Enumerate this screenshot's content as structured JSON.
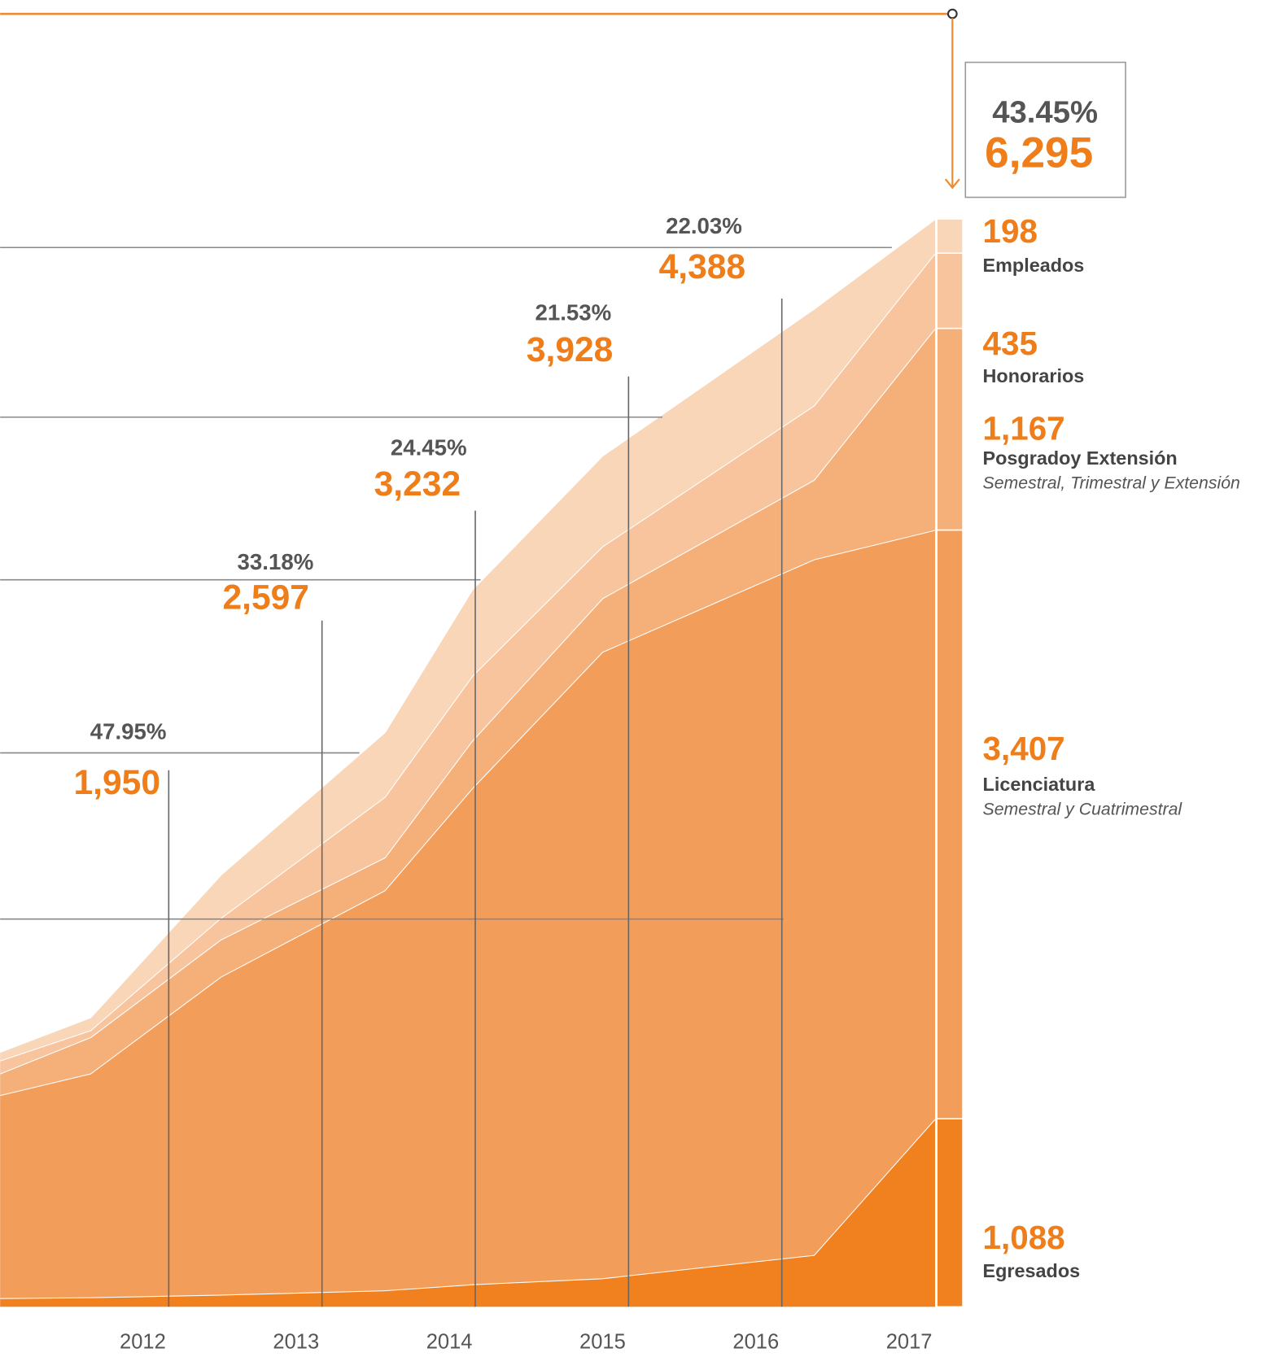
{
  "chart_data": {
    "type": "stacked_area",
    "x": [
      2010.9,
      2011.49,
      2012.34,
      2013.41,
      2013.98,
      2014.83,
      2016.21,
      2017
    ],
    "xlim": [
      2010.9,
      2017
    ],
    "xticks": [
      2012,
      2013,
      2014,
      2015,
      2016,
      2017
    ],
    "ylim": [
      0,
      6300
    ],
    "series": [
      {
        "name": "Egresados",
        "color": "#f0811e",
        "values": [
          50,
          55,
          70,
          95,
          130,
          165,
          300,
          1088
        ],
        "value_labels": [
          null,
          null,
          null,
          null,
          null,
          null,
          null,
          "1,088"
        ]
      },
      {
        "name": "Licenciatura",
        "subtitle": "Semestral y Cuatrimestral",
        "color": "#f39d5a",
        "values": [
          1175,
          1295,
          1840,
          2315,
          2870,
          3625,
          4025,
          3407
        ],
        "value_labels": [
          null,
          null,
          null,
          null,
          null,
          null,
          null,
          "3,407"
        ]
      },
      {
        "name": "Posgradoy Extensión",
        "subtitle": "Semestral, Trimestral y Extensión",
        "color": "#f5b07a",
        "values": [
          125,
          210,
          215,
          190,
          275,
          310,
          460,
          1167
        ],
        "value_labels": [
          null,
          null,
          null,
          null,
          null,
          null,
          null,
          "1,167"
        ]
      },
      {
        "name": "Honorarios",
        "color": "#f8c49e",
        "values": [
          75,
          40,
          125,
          350,
          375,
          300,
          430,
          435
        ]
      },
      {
        "name": "Empleados",
        "color": "#fad6b9",
        "values": [
          50,
          75,
          250,
          375,
          500,
          525,
          560,
          198
        ]
      }
    ],
    "annotations": [
      {
        "x": 2012,
        "label": "47.95%",
        "total": 1950,
        "total_label": "1,950"
      },
      {
        "x": 2013,
        "label": "33.18%",
        "total": 2597,
        "total_label": "2,597"
      },
      {
        "x": 2014,
        "label": "24.45%",
        "total": 3232,
        "total_label": "3,232"
      },
      {
        "x": 2015,
        "label": "21.53%",
        "total": 3928,
        "total_label": "3,928"
      },
      {
        "x": 2016,
        "label": "22.03%",
        "total": 4388,
        "total_label": "4,388"
      },
      {
        "x": 2017,
        "label": "43.45%",
        "total": 6295,
        "total_label": "6,295"
      }
    ]
  }
}
